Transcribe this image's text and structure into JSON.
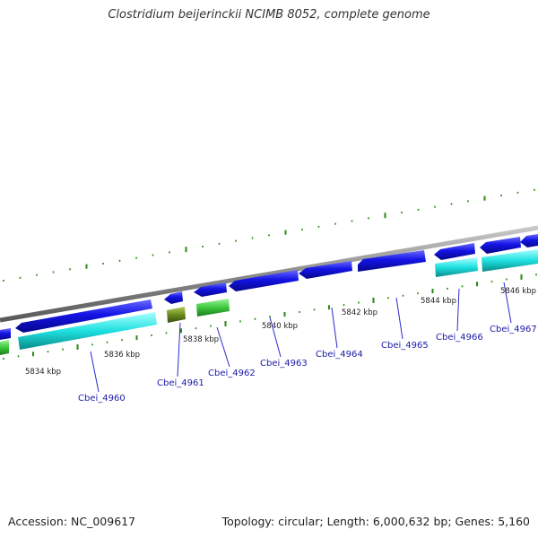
{
  "title": "Clostridium beijerinckii NCIMB 8052, complete genome",
  "footer": {
    "accession": "Accession: NC_009617",
    "topology": "Topology: circular; Length: 6,000,632 bp; Genes: 5,160"
  },
  "colors": {
    "backbone": "#8c8c8c",
    "forward_cds": "#1414e6",
    "reverse_cds": "#1ee0e0",
    "gc_skew": "#2a8a12",
    "green_feature": "#3cc83c",
    "olive_feature": "#6b8a1e",
    "label": "#1a1aa8"
  },
  "scale_labels": [
    "5834 kbp",
    "5836 kbp",
    "5838 kbp",
    "5840 kbp",
    "5842 kbp",
    "5844 kbp",
    "5846 kbp"
  ],
  "genes": [
    {
      "name": "Cbei_4960"
    },
    {
      "name": "Cbei_4961"
    },
    {
      "name": "Cbei_4962"
    },
    {
      "name": "Cbei_4963"
    },
    {
      "name": "Cbei_4964"
    },
    {
      "name": "Cbei_4965"
    },
    {
      "name": "Cbei_4966"
    },
    {
      "name": "Cbei_4967"
    }
  ]
}
